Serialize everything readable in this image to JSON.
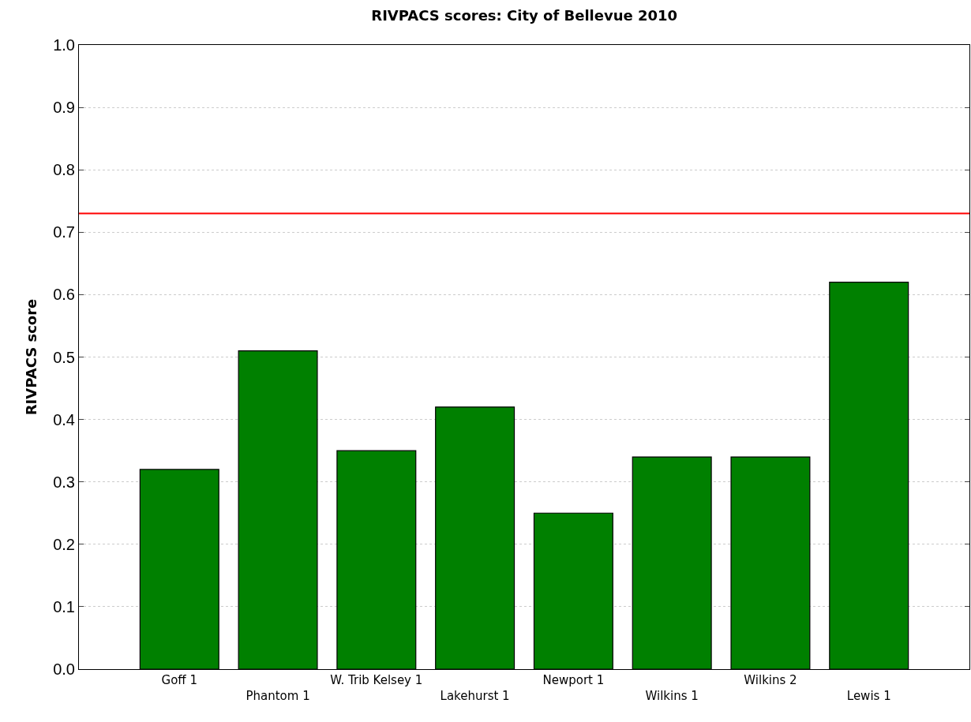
{
  "chart_data": {
    "type": "bar",
    "title": "RIVPACS scores: City of Bellevue 2010",
    "ylabel": "RIVPACS score",
    "categories": [
      "Goff 1",
      "Phantom 1",
      "W. Trib Kelsey 1",
      "Lakehurst 1",
      "Newport 1",
      "Wilkins 1",
      "Wilkins 2",
      "Lewis 1"
    ],
    "values": [
      0.32,
      0.51,
      0.35,
      0.42,
      0.25,
      0.34,
      0.34,
      0.62
    ],
    "color": "#008000",
    "ylim": [
      0,
      1
    ],
    "yticks": [
      {
        "value": 0,
        "label": "0.0"
      },
      {
        "value": 0.1,
        "label": "0.1"
      },
      {
        "value": 0.2,
        "label": "0.2"
      },
      {
        "value": 0.3,
        "label": "0.3"
      },
      {
        "value": 0.4,
        "label": "0.4"
      },
      {
        "value": 0.5,
        "label": "0.5"
      },
      {
        "value": 0.6,
        "label": "0.6"
      },
      {
        "value": 0.7,
        "label": "0.7"
      },
      {
        "value": 0.8,
        "label": "0.8"
      },
      {
        "value": 0.9,
        "label": "0.9"
      },
      {
        "value": 1,
        "label": "1.0"
      }
    ],
    "ref_lines": [
      {
        "axis": "y",
        "value": 0.73,
        "color": "#ff0000"
      }
    ],
    "grid": "y",
    "legend": false
  }
}
